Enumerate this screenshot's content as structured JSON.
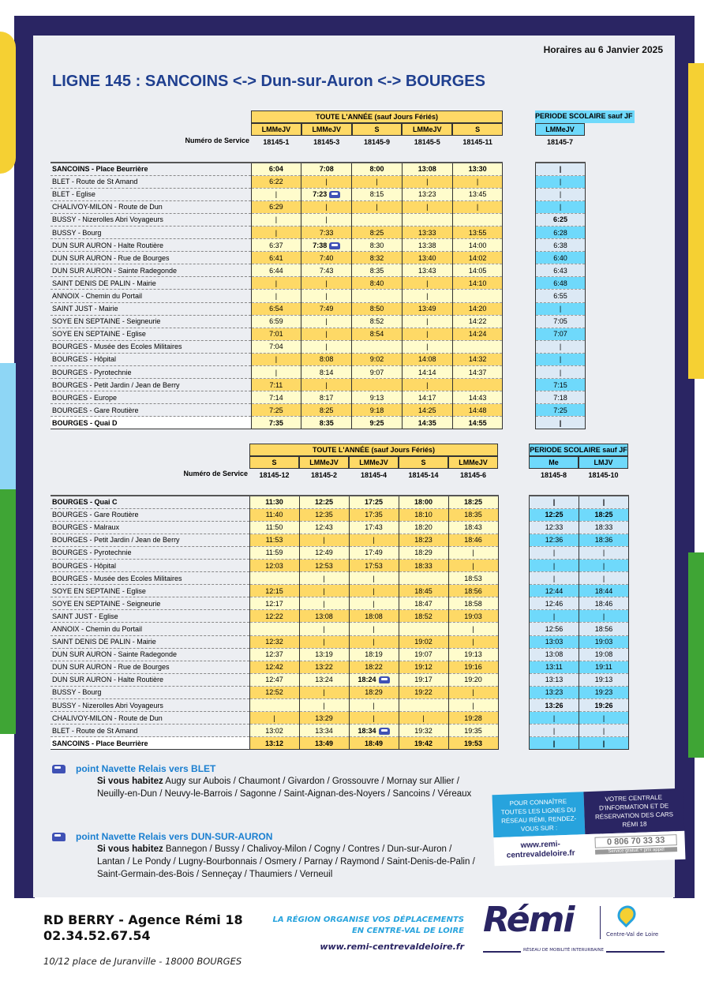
{
  "header": {
    "date": "Horaires au 6 Janvier 2025",
    "title": "LIGNE 145 : SANCOINS <-> Dun-sur-Auron <-> BOURGES"
  },
  "colors": {
    "title": "#1f3f8f",
    "yellow": "#fed966",
    "light_yellow": "#fffccc",
    "cyan": "#6fd9fb",
    "light_blue": "#dce9f5",
    "navy": "#2a2563"
  },
  "service_label": "Numéro de Service",
  "table1": {
    "all_year_label": "TOUTE L'ANNÉE (sauf Jours Fériés)",
    "school_label": "PERIODE SCOLAIRE sauf JF",
    "days": [
      "LMMeJV",
      "LMMeJV",
      "S",
      "LMMeJV",
      "S"
    ],
    "school_days": [
      "LMMeJV"
    ],
    "services": [
      "18145-1",
      "18145-3",
      "18145-9",
      "18145-5",
      "18145-11"
    ],
    "school_services": [
      "18145-7"
    ],
    "rows": [
      {
        "stop": "SANCOINS - Place Beurrière",
        "times": [
          "6:04",
          "7:08",
          "8:00",
          "13:08",
          "13:30"
        ],
        "school": [
          "|"
        ]
      },
      {
        "stop": "BLET - Route de St Amand",
        "times": [
          "6:22",
          "|",
          "|",
          "|",
          "|"
        ],
        "school": [
          "|"
        ]
      },
      {
        "stop": "BLET - Eglise",
        "times": [
          "|",
          {
            "time": "7:23",
            "shuttle": true
          },
          "8:15",
          "13:23",
          "13:45"
        ],
        "school": [
          "|"
        ]
      },
      {
        "stop": "CHALIVOY-MILON - Route de Dun",
        "times": [
          "6:29",
          "|",
          "|",
          "|",
          "|"
        ],
        "school": [
          "|"
        ]
      },
      {
        "stop": "BUSSY - Nizerolles Abri Voyageurs",
        "times": [
          "|",
          "|",
          "",
          "",
          ""
        ],
        "school": [
          {
            "time": "6:25",
            "bold": true
          }
        ]
      },
      {
        "stop": "BUSSY - Bourg",
        "times": [
          "|",
          "7:33",
          "8:25",
          "13:33",
          "13:55"
        ],
        "school": [
          "6:28"
        ]
      },
      {
        "stop": "DUN SUR AURON - Halte Routière",
        "times": [
          "6:37",
          {
            "time": "7:38",
            "shuttle": true
          },
          "8:30",
          "13:38",
          "14:00"
        ],
        "school": [
          "6:38"
        ]
      },
      {
        "stop": "DUN SUR AURON - Rue de Bourges",
        "times": [
          "6:41",
          "7:40",
          "8:32",
          "13:40",
          "14:02"
        ],
        "school": [
          "6:40"
        ]
      },
      {
        "stop": "DUN SUR AURON - Sainte Radegonde",
        "times": [
          "6:44",
          "7:43",
          "8:35",
          "13:43",
          "14:05"
        ],
        "school": [
          "6:43"
        ]
      },
      {
        "stop": "SAINT DENIS DE PALIN - Mairie",
        "times": [
          "|",
          "|",
          "8:40",
          "|",
          "14:10"
        ],
        "school": [
          "6:48"
        ]
      },
      {
        "stop": "ANNOIX - Chemin du Portail",
        "times": [
          "|",
          "|",
          "",
          "|",
          ""
        ],
        "school": [
          "6:55"
        ]
      },
      {
        "stop": "SAINT JUST - Mairie",
        "times": [
          "6:54",
          "7:49",
          "8:50",
          "13:49",
          "14:20"
        ],
        "school": [
          "|"
        ]
      },
      {
        "stop": "SOYE EN SEPTAINE - Seigneurie",
        "times": [
          "6:59",
          "|",
          "8:52",
          "|",
          "14:22"
        ],
        "school": [
          "7:05"
        ]
      },
      {
        "stop": "SOYE EN SEPTAINE - Eglise",
        "times": [
          "7:01",
          "|",
          "8:54",
          "|",
          "14:24"
        ],
        "school": [
          "7:07"
        ]
      },
      {
        "stop": "BOURGES - Musée des Ecoles Militaires",
        "times": [
          "7:04",
          "|",
          "",
          "|",
          ""
        ],
        "school": [
          "|"
        ]
      },
      {
        "stop": "BOURGES - Hôpital",
        "times": [
          "|",
          "8:08",
          "9:02",
          "14:08",
          "14:32"
        ],
        "school": [
          "|"
        ]
      },
      {
        "stop": "BOURGES - Pyrotechnie",
        "times": [
          "|",
          "8:14",
          "9:07",
          "14:14",
          "14:37"
        ],
        "school": [
          "|"
        ]
      },
      {
        "stop": "BOURGES - Petit Jardin / Jean de Berry",
        "times": [
          "7:11",
          "|",
          "",
          "|",
          ""
        ],
        "school": [
          "7:15"
        ]
      },
      {
        "stop": "BOURGES - Europe",
        "times": [
          "7:14",
          "8:17",
          "9:13",
          "14:17",
          "14:43"
        ],
        "school": [
          "7:18"
        ]
      },
      {
        "stop": "BOURGES - Gare Routière",
        "times": [
          "7:25",
          "8:25",
          "9:18",
          "14:25",
          "14:48"
        ],
        "school": [
          "7:25"
        ]
      },
      {
        "stop": "BOURGES - Quai D",
        "times": [
          "7:35",
          "8:35",
          "9:25",
          "14:35",
          "14:55"
        ],
        "school": [
          "|"
        ]
      }
    ]
  },
  "table2": {
    "all_year_label": "TOUTE L'ANNÉE (sauf Jours Fériés)",
    "school_label": "PERIODE SCOLAIRE sauf JF",
    "days": [
      "S",
      "LMMeJV",
      "LMMeJV",
      "S",
      "LMMeJV"
    ],
    "school_days": [
      "Me",
      "LMJV"
    ],
    "services": [
      "18145-12",
      "18145-2",
      "18145-4",
      "18145-14",
      "18145-6"
    ],
    "school_services": [
      "18145-8",
      "18145-10"
    ],
    "rows": [
      {
        "stop": "BOURGES - Quai C",
        "times": [
          "11:30",
          "12:25",
          "17:25",
          "18:00",
          "18:25"
        ],
        "school": [
          "|",
          "|"
        ]
      },
      {
        "stop": "BOURGES - Gare Routière",
        "times": [
          "11:40",
          "12:35",
          "17:35",
          "18:10",
          "18:35"
        ],
        "school": [
          {
            "time": "12:25",
            "bold": true
          },
          {
            "time": "18:25",
            "bold": true
          }
        ]
      },
      {
        "stop": "BOURGES - Malraux",
        "times": [
          "11:50",
          "12:43",
          "17:43",
          "18:20",
          "18:43"
        ],
        "school": [
          "12:33",
          "18:33"
        ]
      },
      {
        "stop": "BOURGES - Petit Jardin / Jean de Berry",
        "times": [
          "11:53",
          "|",
          "|",
          "18:23",
          "18:46"
        ],
        "school": [
          "12:36",
          "18:36"
        ]
      },
      {
        "stop": "BOURGES - Pyrotechnie",
        "times": [
          "11:59",
          "12:49",
          "17:49",
          "18:29",
          "|"
        ],
        "school": [
          "|",
          "|"
        ]
      },
      {
        "stop": "BOURGES - Hôpital",
        "times": [
          "12:03",
          "12:53",
          "17:53",
          "18:33",
          "|"
        ],
        "school": [
          "|",
          "|"
        ]
      },
      {
        "stop": "BOURGES - Musée des Ecoles Militaires",
        "times": [
          "",
          "|",
          "|",
          "",
          "18:53"
        ],
        "school": [
          "|",
          "|"
        ]
      },
      {
        "stop": "SOYE EN SEPTAINE - Eglise",
        "times": [
          "12:15",
          "|",
          "|",
          "18:45",
          "18:56"
        ],
        "school": [
          "12:44",
          "18:44"
        ]
      },
      {
        "stop": "SOYE EN SEPTAINE - Seigneurie",
        "times": [
          "12:17",
          "|",
          "|",
          "18:47",
          "18:58"
        ],
        "school": [
          "12:46",
          "18:46"
        ]
      },
      {
        "stop": "SAINT JUST - Eglise",
        "times": [
          "12:22",
          "13:08",
          "18:08",
          "18:52",
          "19:03"
        ],
        "school": [
          "|",
          "|"
        ]
      },
      {
        "stop": "ANNOIX - Chemin du Portail",
        "times": [
          "",
          "|",
          "|",
          "",
          "|"
        ],
        "school": [
          "12:56",
          "18:56"
        ]
      },
      {
        "stop": "SAINT DENIS DE PALIN - Mairie",
        "times": [
          "12:32",
          "|",
          "|",
          "19:02",
          "|"
        ],
        "school": [
          "13:03",
          "19:03"
        ]
      },
      {
        "stop": "DUN SUR AURON - Sainte Radegonde",
        "times": [
          "12:37",
          "13:19",
          "18:19",
          "19:07",
          "19:13"
        ],
        "school": [
          "13:08",
          "19:08"
        ]
      },
      {
        "stop": "DUN SUR AURON - Rue de Bourges",
        "times": [
          "12:42",
          "13:22",
          "18:22",
          "19:12",
          "19:16"
        ],
        "school": [
          "13:11",
          "19:11"
        ]
      },
      {
        "stop": "DUN SUR AURON - Halte Routière",
        "times": [
          "12:47",
          "13:24",
          {
            "time": "18:24",
            "shuttle": true
          },
          "19:17",
          "19:20"
        ],
        "school": [
          "13:13",
          "19:13"
        ]
      },
      {
        "stop": "BUSSY - Bourg",
        "times": [
          "12:52",
          "|",
          "18:29",
          "19:22",
          "|"
        ],
        "school": [
          "13:23",
          "19:23"
        ]
      },
      {
        "stop": "BUSSY - Nizerolles Abri Voyageurs",
        "times": [
          "",
          "|",
          "|",
          "",
          "|"
        ],
        "school": [
          {
            "time": "13:26",
            "bold": true
          },
          {
            "time": "19:26",
            "bold": true
          }
        ]
      },
      {
        "stop": "CHALIVOY-MILON - Route de Dun",
        "times": [
          "|",
          "13:29",
          "|",
          "|",
          "19:28"
        ],
        "school": [
          "|",
          "|"
        ]
      },
      {
        "stop": "BLET - Route de St Amand",
        "times": [
          "13:02",
          "13:34",
          {
            "time": "18:34",
            "shuttle": true
          },
          "19:32",
          "19:35"
        ],
        "school": [
          "|",
          "|"
        ]
      },
      {
        "stop": "SANCOINS - Place Beurrière",
        "times": [
          "13:12",
          "13:49",
          "18:49",
          "19:42",
          "19:53"
        ],
        "school": [
          "|",
          "|"
        ]
      }
    ]
  },
  "notes": [
    {
      "icon": "car-icon",
      "heading": "point Navette Relais vers BLET",
      "lead": "Si vous habitez",
      "text": "Augy sur Aubois / Chaumont / Givardon / Grossouvre / Mornay sur Allier / Neuilly-en-Dun / Neuvy-le-Barrois / Sagonne / Saint-Aignan-des-Noyers / Sancoins / Véreaux"
    },
    {
      "icon": "car-icon",
      "heading": "point Navette Relais vers DUN-SUR-AURON",
      "lead": "Si vous habitez",
      "text": "Bannegon / Bussy / Chalivoy-Milon / Cogny / Contres / Dun-sur-Auron / Lantan / Le Pondy / Lugny-Bourbonnais / Osmery / Parnay / Raymond / Saint-Denis-de-Palin / Saint-Germain-des-Bois / Senneçay / Thaumiers / Verneuil"
    }
  ],
  "promo": {
    "left": "POUR CONNAÎTRE TOUTES LES LIGNES DU RÉSEAU RÉMI, RENDEZ-VOUS SUR :",
    "right": "VOTRE CENTRALE D'INFORMATION ET DE RÉSERVATION DES CARS RÉMI 18",
    "url": "www.remi-centrevaldeloire.fr",
    "phone": "0 806 70 33 33",
    "phone_note": "Service gratuit + prix appel"
  },
  "footer": {
    "agency": "RD BERRY - Agence Rémi 18",
    "phone": "02.34.52.67.54",
    "address": "10/12 place de Juranville - 18000 BOURGES",
    "slogan1": "LA RÉGION ORGANISE VOS DÉPLACEMENTS",
    "slogan2": "EN CENTRE-VAL DE LOIRE",
    "website": "www.remi-centrevaldeloire.fr",
    "logo": "Rémi",
    "region": "Centre-Val de Loire",
    "network": "RÉSEAU DE MOBILITÉ INTERURBAINE"
  }
}
